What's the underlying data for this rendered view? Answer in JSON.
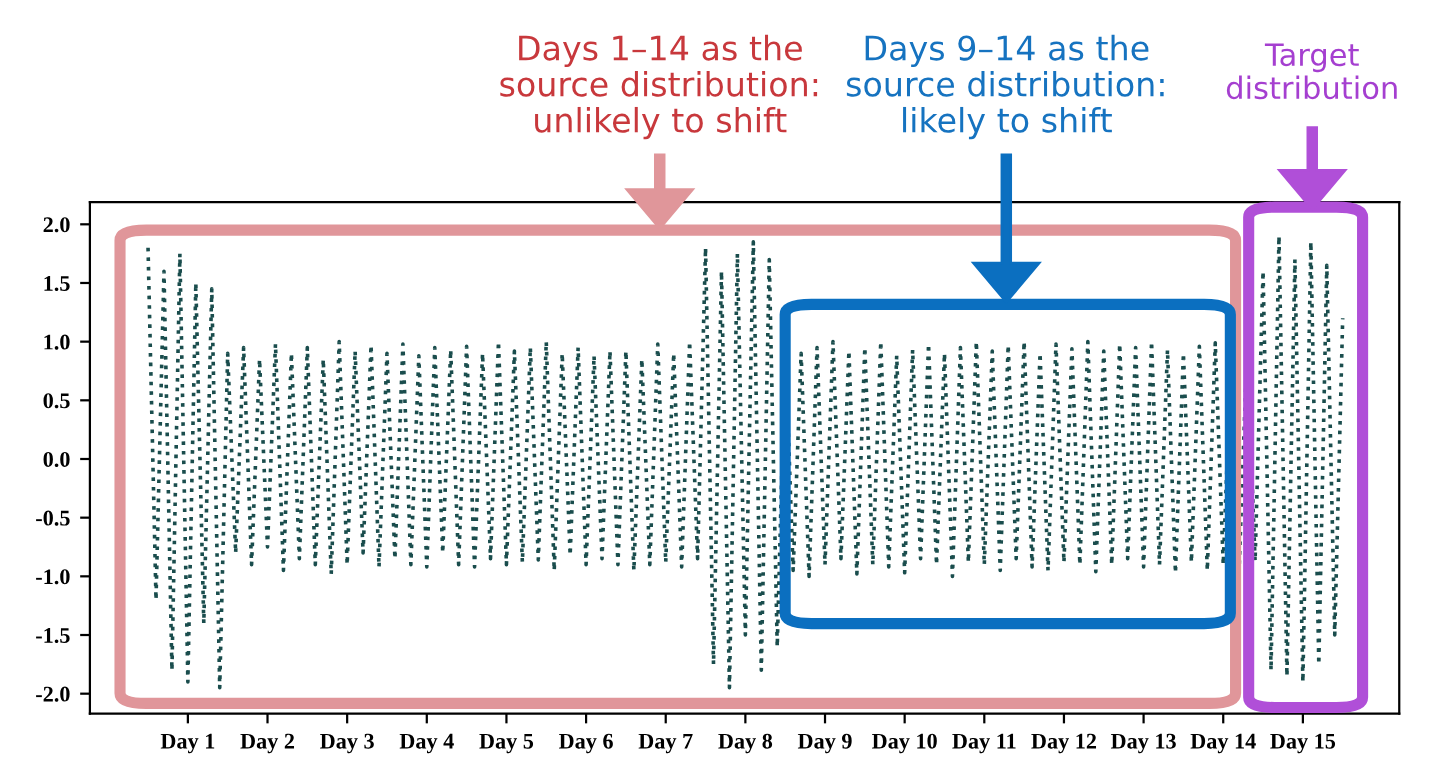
{
  "chart_data": {
    "type": "line",
    "annotations": [
      "Days 1–14 as the\nsource distribution:\nunlikely to shift",
      "Days 9–14 as the\nsource distribution:\nlikely to shift",
      "Target\ndistribution"
    ],
    "categories": [
      null,
      null,
      null,
      null,
      null,
      "Day 1",
      null,
      null,
      null,
      null,
      null,
      null,
      null,
      null,
      null,
      "Day 2",
      null,
      null,
      null,
      null,
      null,
      null,
      null,
      null,
      null,
      "Day 3",
      null,
      null,
      null,
      null,
      null,
      null,
      null,
      null,
      null,
      "Day 4",
      null,
      null,
      null,
      null,
      null,
      null,
      null,
      null,
      null,
      "Day 5",
      null,
      null,
      null,
      null,
      null,
      null,
      null,
      null,
      null,
      "Day 6",
      null,
      null,
      null,
      null,
      null,
      null,
      null,
      null,
      null,
      "Day 7",
      null,
      null,
      null,
      null,
      null,
      null,
      null,
      null,
      null,
      "Day 8",
      null,
      null,
      null,
      null,
      null,
      null,
      null,
      null,
      null,
      "Day 9",
      null,
      null,
      null,
      null,
      null,
      null,
      null,
      null,
      null,
      "Day 10",
      null,
      null,
      null,
      null,
      null,
      null,
      null,
      null,
      null,
      "Day 11",
      null,
      null,
      null,
      null,
      null,
      null,
      null,
      null,
      null,
      "Day 12",
      null,
      null,
      null,
      null,
      null,
      null,
      null,
      null,
      null,
      "Day 13",
      null,
      null,
      null,
      null,
      null,
      null,
      null,
      null,
      null,
      "Day 14",
      null,
      null,
      null,
      null,
      null,
      null,
      null,
      null,
      null,
      "Day 15",
      null,
      null,
      null,
      null,
      null
    ],
    "ylim": [
      -2.17,
      2.19
    ],
    "yticks": [
      {
        "value": -2,
        "label": "-2.0"
      },
      {
        "value": -1.5,
        "label": "-1.5"
      },
      {
        "value": -1,
        "label": "-1.0"
      },
      {
        "value": -0.5,
        "label": "-0.5"
      },
      {
        "value": 0,
        "label": "0.0"
      },
      {
        "value": 0.5,
        "label": "0.5"
      },
      {
        "value": 1,
        "label": "1.0"
      },
      {
        "value": 1.5,
        "label": "1.5"
      },
      {
        "value": 2,
        "label": "2.0"
      }
    ],
    "grid": false,
    "legend": false,
    "marker": "none",
    "line_style": "dotted",
    "series": [
      {
        "color": "#1a4d4d",
        "values": [
          1.8,
          -1.2,
          1.6,
          -1.8,
          1.75,
          -1.9,
          1.5,
          -1.4,
          1.45,
          -1.95,
          0.9,
          -0.8,
          0.95,
          -0.9,
          0.85,
          -0.75,
          0.98,
          -0.95,
          0.9,
          -0.85,
          0.95,
          -0.9,
          0.85,
          -0.98,
          1.0,
          -0.9,
          0.92,
          -0.8,
          0.97,
          -0.92,
          0.9,
          -0.85,
          0.98,
          -0.9,
          0.88,
          -0.92,
          0.95,
          -0.8,
          0.93,
          -0.9,
          0.96,
          -0.92,
          0.9,
          -0.85,
          1.0,
          -0.9,
          0.92,
          -0.88,
          0.95,
          -0.86,
          1.0,
          -0.95,
          0.9,
          -0.82,
          0.95,
          -0.9,
          0.88,
          -0.85,
          0.92,
          -0.9,
          0.92,
          -0.95,
          0.85,
          -0.9,
          0.98,
          -0.88,
          0.9,
          -0.92,
          1.0,
          -0.85,
          1.8,
          -1.75,
          1.6,
          -1.95,
          1.75,
          -1.5,
          1.85,
          -1.8,
          1.7,
          -1.6,
          1.0,
          -0.95,
          0.9,
          -1.0,
          0.95,
          -0.9,
          1.0,
          -0.85,
          0.92,
          -0.98,
          0.95,
          -0.9,
          1.0,
          -0.92,
          0.88,
          -0.97,
          0.93,
          -0.85,
          0.98,
          -0.9,
          0.9,
          -1.0,
          0.95,
          -0.88,
          1.0,
          -0.9,
          0.92,
          -0.95,
          0.97,
          -0.85,
          1.0,
          -0.92,
          0.9,
          -0.95,
          0.98,
          -0.88,
          0.94,
          -0.9,
          1.0,
          -0.96,
          0.92,
          -0.9,
          0.98,
          -0.85,
          0.95,
          -0.92,
          1.0,
          -0.9,
          0.93,
          -0.97,
          0.9,
          -0.88,
          0.96,
          -0.95,
          0.99,
          -0.9,
          0.92,
          -0.93,
          0.97,
          -0.87,
          1.6,
          -1.8,
          1.9,
          -1.85,
          1.7,
          -1.9,
          1.85,
          -1.75,
          1.65,
          -1.5,
          1.2
        ]
      }
    ]
  }
}
